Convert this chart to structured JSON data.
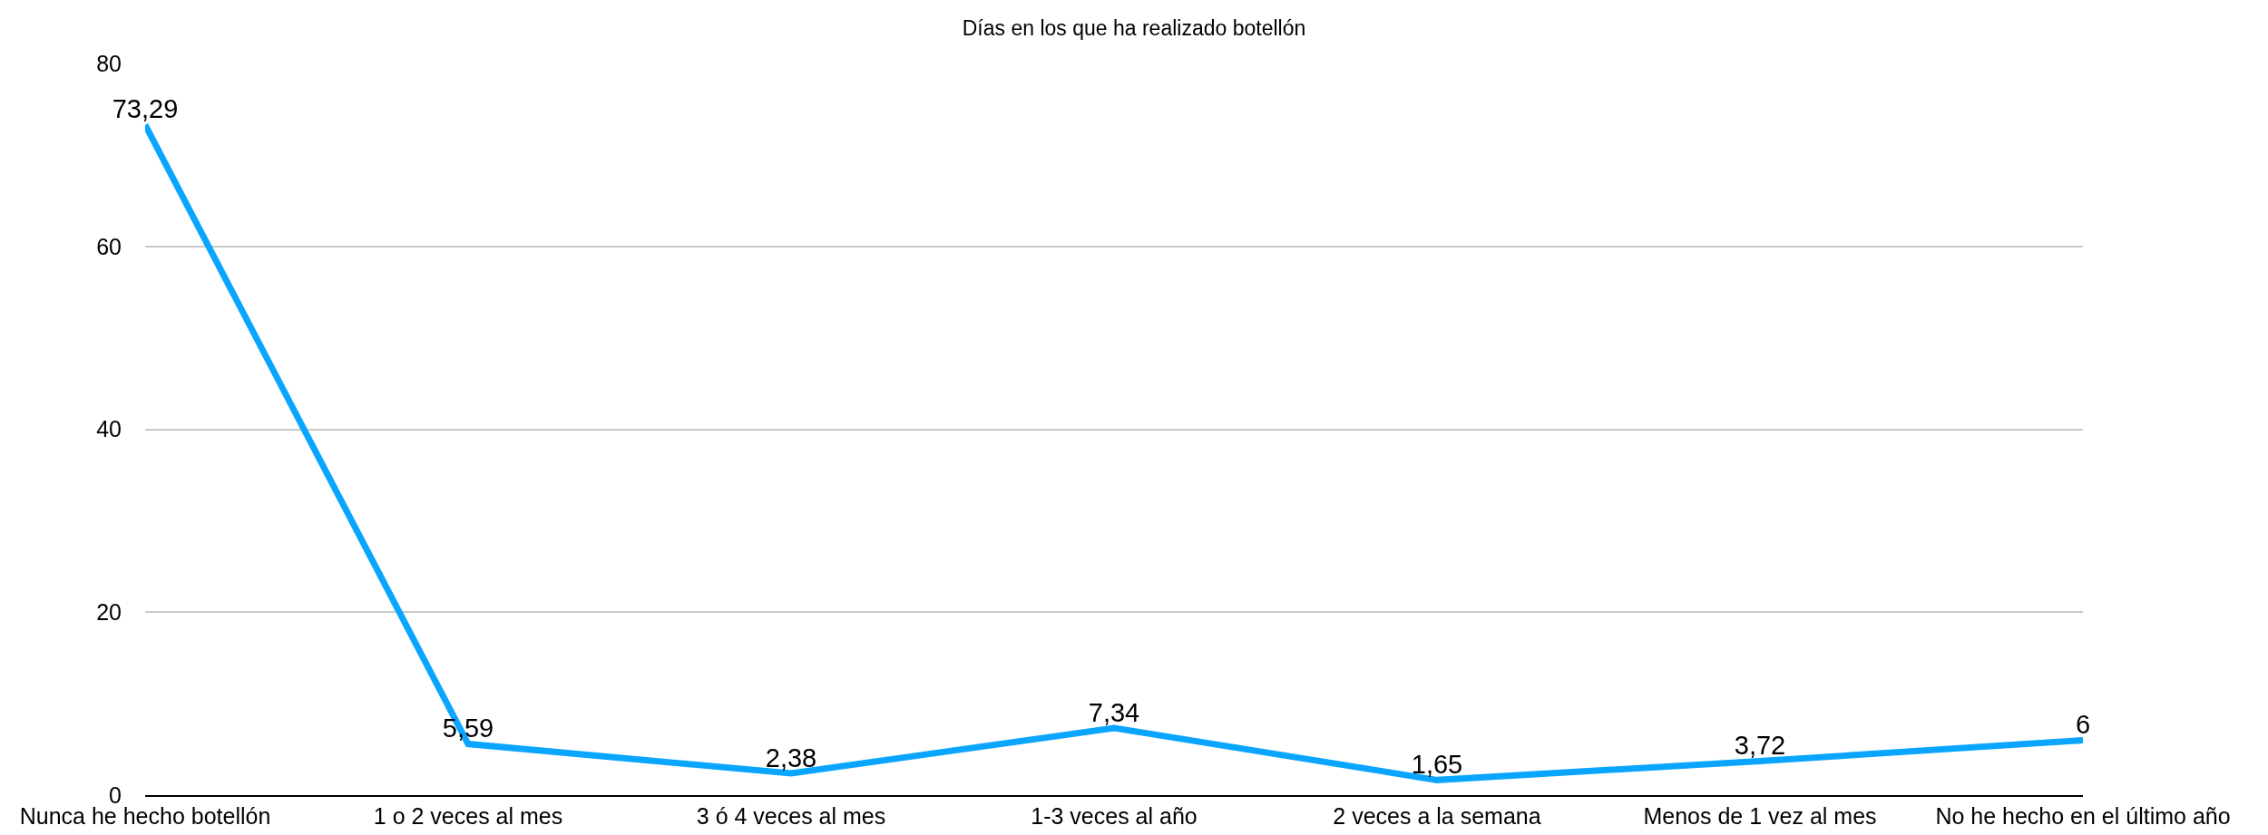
{
  "chart_data": {
    "type": "line",
    "title": "Días en los que ha realizado botellón",
    "categories": [
      "Nunca he hecho botellón",
      "1 o 2 veces al mes",
      "3 ó 4 veces al mes",
      "1-3 veces al año",
      "2 veces a la semana",
      "Menos de 1 vez al mes",
      "No he hecho en el último año"
    ],
    "series": [
      {
        "color": "#0aa5ff",
        "values": [
          73.29,
          5.59,
          2.38,
          7.34,
          1.65,
          3.72,
          6
        ],
        "value_labels": [
          "73,29",
          "5,59",
          "2,38",
          "7,34",
          "1,65",
          "3,72",
          "6"
        ]
      }
    ],
    "ylim": [
      0,
      80
    ],
    "yticks": [
      0,
      20,
      40,
      60,
      80
    ],
    "grid": "y",
    "marker": "none",
    "line_style": "solid"
  }
}
